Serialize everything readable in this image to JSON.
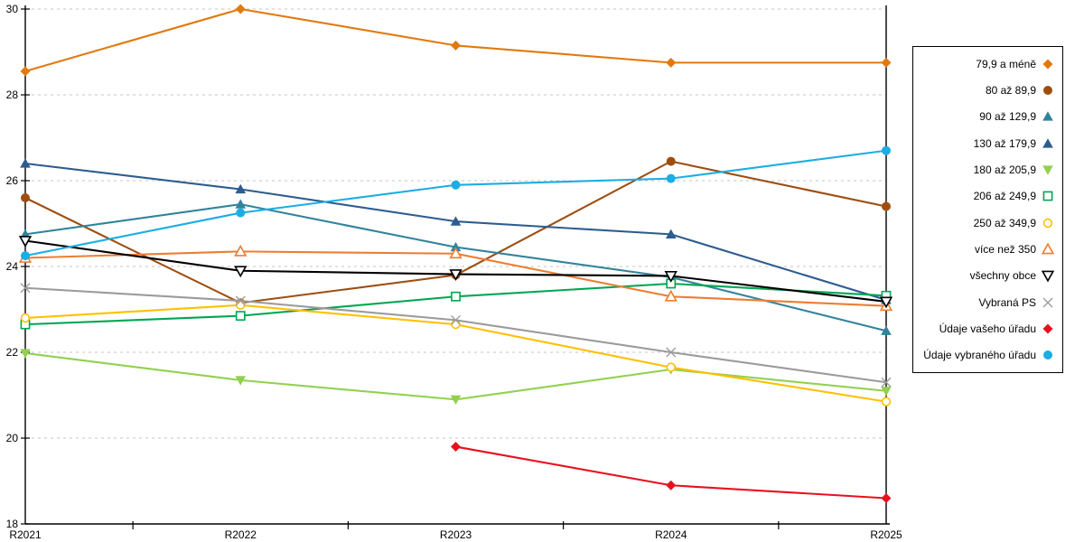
{
  "chart_data": {
    "type": "line",
    "title": "",
    "xlabel": "",
    "ylabel": "",
    "x_categories": [
      "R2021",
      "R2022",
      "R2023",
      "R2024",
      "R2025"
    ],
    "ylim": [
      18,
      30
    ],
    "yticks": [
      18,
      20,
      22,
      24,
      26,
      28,
      30
    ],
    "grid": "horizontal-dashed",
    "legend_position": "right",
    "colors": {
      "axis": "#000000",
      "grid": "#c6c6c6",
      "background": "#ffffff"
    },
    "series": [
      {
        "name": "79,9 a méně",
        "marker": "diamond",
        "fill": "filled",
        "color": "#E2790E",
        "values": [
          28.55,
          30.0,
          29.15,
          28.75,
          28.75
        ]
      },
      {
        "name": "80 až 89,9",
        "marker": "circle",
        "fill": "filled",
        "color": "#9E4D10",
        "values": [
          25.6,
          23.15,
          23.8,
          26.45,
          25.4
        ]
      },
      {
        "name": "90 až 129,9",
        "marker": "triangle-up",
        "fill": "filled",
        "color": "#31849B",
        "values": [
          24.75,
          25.45,
          24.45,
          23.75,
          22.5
        ]
      },
      {
        "name": "130 až 179,9",
        "marker": "triangle-up",
        "fill": "filled",
        "color": "#2E5C8F",
        "values": [
          26.4,
          25.8,
          25.05,
          24.75,
          23.22
        ]
      },
      {
        "name": "180 až 205,9",
        "marker": "triangle-down",
        "fill": "filled",
        "color": "#92D050",
        "values": [
          21.98,
          21.35,
          20.9,
          21.6,
          21.1
        ]
      },
      {
        "name": "206 až 249,9",
        "marker": "square",
        "fill": "open",
        "color": "#00A651",
        "values": [
          22.65,
          22.85,
          23.3,
          23.6,
          23.32
        ]
      },
      {
        "name": "250 až 349,9",
        "marker": "circle",
        "fill": "open",
        "color": "#FFC000",
        "values": [
          22.8,
          23.1,
          22.65,
          21.65,
          20.85
        ]
      },
      {
        "name": "více než 350",
        "marker": "triangle-up",
        "fill": "open",
        "color": "#ED7D31",
        "values": [
          24.2,
          24.35,
          24.3,
          23.3,
          23.08
        ]
      },
      {
        "name": "všechny obce",
        "marker": "triangle-down",
        "fill": "open",
        "color": "#000000",
        "values": [
          24.6,
          23.9,
          23.82,
          23.78,
          23.18
        ]
      },
      {
        "name": "Vybraná PS",
        "marker": "x",
        "fill": "open",
        "color": "#9B9B9B",
        "values": [
          23.5,
          23.2,
          22.75,
          22.0,
          21.3
        ]
      },
      {
        "name": "Údaje vašeho úřadu",
        "marker": "diamond",
        "fill": "filled",
        "color": "#E8101E",
        "values": [
          null,
          null,
          19.8,
          18.9,
          18.6
        ]
      },
      {
        "name": "Údaje vybraného úřadu",
        "marker": "circle",
        "fill": "filled",
        "color": "#1BADE4",
        "values": [
          24.25,
          25.25,
          25.9,
          26.05,
          26.7
        ]
      }
    ]
  }
}
